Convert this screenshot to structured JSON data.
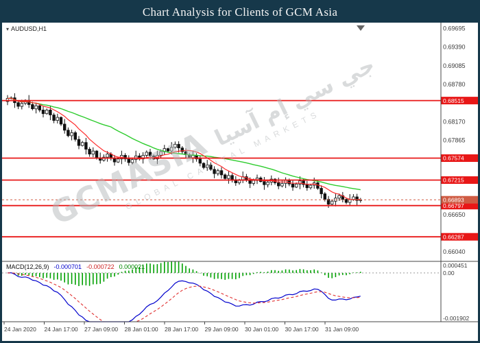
{
  "title": "Chart Analysis for Clients of GCM Asia",
  "watermark": {
    "text": "GCMASIA",
    "arabic": "جي سي إم آسيا",
    "subtext": "GLOBAL CAPITAL MARKETS"
  },
  "colors": {
    "hline": "#e81717",
    "badge_current": "#cf5b43",
    "ma_slow": "#2ecc2e",
    "ma_fast": "#ff2a2a",
    "macd_main": "#0000cc",
    "macd_signal": "#e03030",
    "macd_hist": "#00a000",
    "candle": "#111111",
    "axis_text": "#3a3a3a",
    "title_bg": "#16384a"
  },
  "chart_data": {
    "type": "candlestick",
    "symbol": "AUDUSD",
    "timeframe": "H1",
    "symbol_label": "AUDUSD,H1",
    "price_axis": {
      "max": 0.6979,
      "min": 0.6593,
      "labels": [
        {
          "text": "0.69695",
          "value": 0.69695
        },
        {
          "text": "0.69390",
          "value": 0.6939
        },
        {
          "text": "0.69085",
          "value": 0.69085
        },
        {
          "text": "0.68780",
          "value": 0.6878
        },
        {
          "text": "0.68170",
          "value": 0.6817
        },
        {
          "text": "0.67865",
          "value": 0.67865
        },
        {
          "text": "0.66650",
          "value": 0.6665
        },
        {
          "text": "0.66040",
          "value": 0.6604
        }
      ]
    },
    "hlines": [
      {
        "value": 0.68515,
        "label": "0.68515"
      },
      {
        "value": 0.67574,
        "label": "0.67574"
      },
      {
        "value": 0.67215,
        "label": "0.67215"
      },
      {
        "value": 0.66797,
        "label": "0.66797"
      },
      {
        "value": 0.66287,
        "label": "0.66287"
      }
    ],
    "current_price": {
      "value": 0.66893,
      "label": "0.66893"
    },
    "candles": {
      "first_open": 0.685,
      "wick_pattern": [
        0.00055,
        0.00025,
        0.00075,
        0.00035,
        0.0006,
        0.00015,
        0.00085,
        0.00045,
        0.0005,
        0.0003
      ],
      "closes": [
        0.6855,
        0.6856,
        0.6848,
        0.6842,
        0.6847,
        0.6852,
        0.6845,
        0.6838,
        0.6843,
        0.6836,
        0.683,
        0.6836,
        0.6828,
        0.6819,
        0.6824,
        0.6813,
        0.6803,
        0.6794,
        0.6799,
        0.6788,
        0.6778,
        0.6783,
        0.6772,
        0.6764,
        0.6769,
        0.6758,
        0.6754,
        0.6759,
        0.6764,
        0.6757,
        0.6751,
        0.6756,
        0.6762,
        0.6756,
        0.675,
        0.6755,
        0.6761,
        0.6756,
        0.6762,
        0.6767,
        0.6761,
        0.6756,
        0.6762,
        0.6768,
        0.6773,
        0.6769,
        0.6775,
        0.678,
        0.6774,
        0.6768,
        0.6763,
        0.6758,
        0.6762,
        0.6756,
        0.6749,
        0.6742,
        0.6746,
        0.6739,
        0.6732,
        0.6737,
        0.673,
        0.6724,
        0.6729,
        0.6722,
        0.6717,
        0.6722,
        0.6727,
        0.6721,
        0.6716,
        0.6721,
        0.6725,
        0.6719,
        0.6714,
        0.6718,
        0.6723,
        0.6717,
        0.6712,
        0.6716,
        0.6721,
        0.6715,
        0.671,
        0.6715,
        0.672,
        0.6714,
        0.6709,
        0.6713,
        0.6717,
        0.6708,
        0.6699,
        0.669,
        0.6682,
        0.6687,
        0.6692,
        0.6696,
        0.669,
        0.6685,
        0.669,
        0.6694,
        0.6688,
        0.66893
      ]
    },
    "overlays": [
      {
        "name": "sma-slow",
        "period": 30
      },
      {
        "name": "sma-fast",
        "period": 9
      }
    ],
    "x_labels": [
      "24 Jan 2020",
      "24 Jan 17:00",
      "27 Jan 09:00",
      "28 Jan 01:00",
      "28 Jan 17:00",
      "29 Jan 09:00",
      "30 Jan 01:00",
      "30 Jan 17:00",
      "31 Jan 09:00"
    ],
    "macd": {
      "label": "MACD(12,26,9)",
      "value_main": "-0.000701",
      "value_signal": "-0.000722",
      "value_hist": "0.000021",
      "periods": {
        "fast": 12,
        "slow": 26,
        "signal": 9
      },
      "axis": {
        "max": 0.000451,
        "min": -0.001902,
        "max_label": "0.000451",
        "zero_label": "0.00",
        "min_label": "-0.001902"
      }
    }
  }
}
